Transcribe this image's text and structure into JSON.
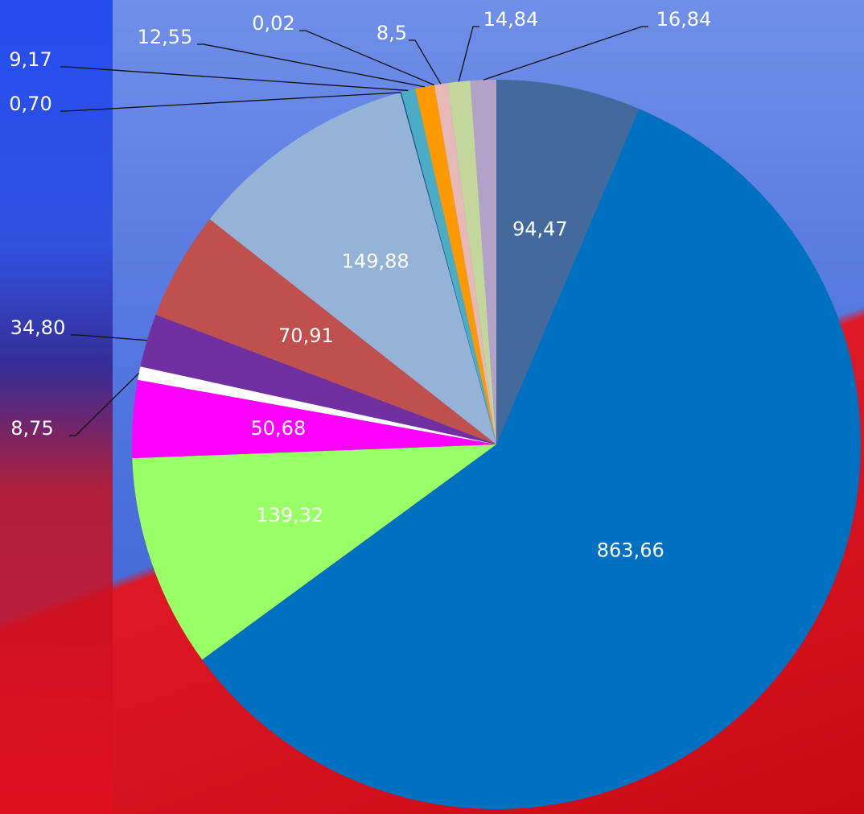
{
  "chart_data": {
    "type": "pie",
    "values": [
      94.47,
      863.66,
      139.32,
      50.68,
      8.75,
      34.8,
      70.91,
      149.88,
      0.7,
      9.17,
      12.55,
      0.02,
      8.5,
      14.84,
      16.84
    ],
    "value_labels": [
      "94,47",
      "863,66",
      "139,32",
      "50,68",
      "8,75",
      "34,80",
      "70,91",
      "149,88",
      "0,70",
      "9,17",
      "12,55",
      "0,02",
      "8,5",
      "14,84",
      "16,84"
    ],
    "colors": [
      "#436a9a",
      "#0070c0",
      "#99ff66",
      "#ff00ff",
      "#ffffff",
      "#7030a0",
      "#c0504d",
      "#95b3d7",
      "#1f497d",
      "#4bacc6",
      "#ff9900",
      "#f79646",
      "#e6b9b8",
      "#c3d69b",
      "#b3a2c7"
    ]
  }
}
